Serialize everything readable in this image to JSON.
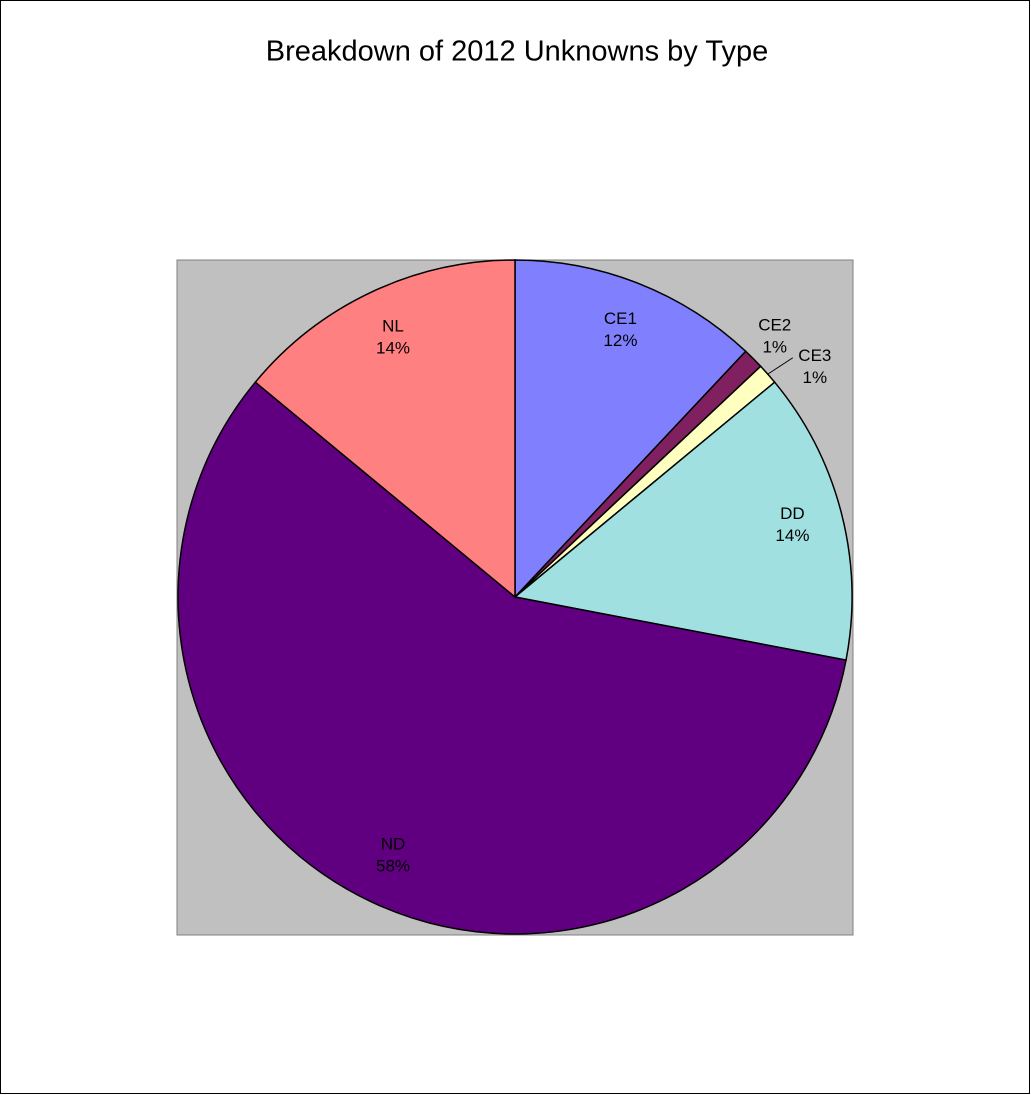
{
  "chart_data": {
    "type": "pie",
    "title": "Breakdown of 2012 Unknowns by Type",
    "categories": [
      "CE1",
      "CE2",
      "CE3",
      "DD",
      "ND",
      "NL"
    ],
    "values": [
      12,
      1,
      1,
      14,
      58,
      14
    ],
    "value_labels": [
      "12%",
      "1%",
      "1%",
      "14%",
      "58%",
      "14%"
    ],
    "colors": [
      "#8080ff",
      "#802060",
      "#ffffc0",
      "#a0e0e0",
      "#600080",
      "#ff8080"
    ]
  }
}
